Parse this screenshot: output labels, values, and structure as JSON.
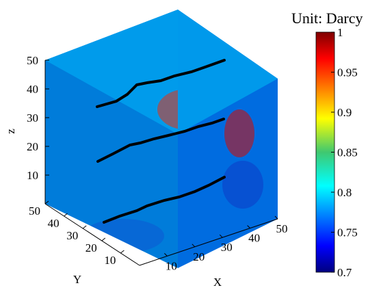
{
  "chart_data": {
    "type": "heatmap",
    "title": "",
    "plot": "3d-volume-slice",
    "xlabel": "X",
    "ylabel": "Y",
    "zlabel": "z",
    "x_ticks": [
      "10",
      "20",
      "30",
      "40",
      "50"
    ],
    "y_ticks": [
      "10",
      "20",
      "30",
      "40",
      "50"
    ],
    "z_ticks": [
      "10",
      "20",
      "30",
      "40",
      "50"
    ],
    "xlim": [
      0,
      50
    ],
    "ylim": [
      0,
      50
    ],
    "zlim": [
      0,
      50
    ],
    "colorbar": {
      "label": "Unit: Darcy",
      "range": [
        0.7,
        1.0
      ],
      "ticks": [
        "0.7",
        "0.75",
        "0.8",
        "0.85",
        "0.9",
        "0.95",
        "1"
      ],
      "colormap": "jet"
    },
    "wells": [
      {
        "z": 10,
        "x_from": 0,
        "x_to": 50,
        "y_from": 50,
        "y_to": 0
      },
      {
        "z": 25,
        "x_from": 0,
        "x_to": 50,
        "y_from": 50,
        "y_to": 0
      },
      {
        "z": 40,
        "x_from": 0,
        "x_to": 50,
        "y_from": 50,
        "y_to": 0
      }
    ],
    "well_color": "#000000"
  }
}
